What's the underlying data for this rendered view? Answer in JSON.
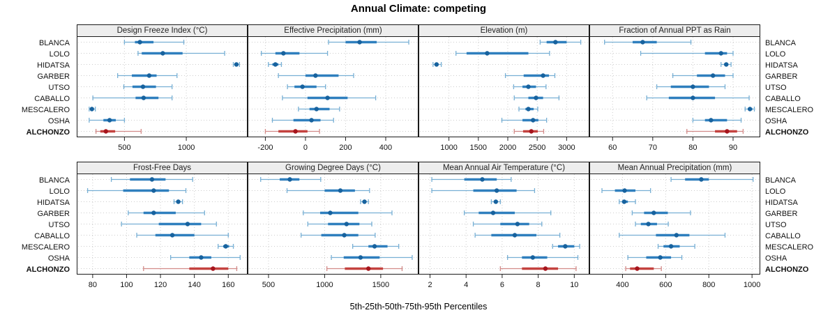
{
  "title": "Annual Climate: competing",
  "xlabel": "5th-25th-50th-75th-95th Percentiles",
  "sites": [
    "BLANCA",
    "LOLO",
    "HIDATSA",
    "GARBER",
    "UTSO",
    "CABALLO",
    "MESCALERO",
    "OSHA",
    "ALCHONZO"
  ],
  "highlight_site": "ALCHONZO",
  "colors": {
    "blue": {
      "median": "#17629e",
      "box": "#2f7fbe",
      "whisker": "#77afd4"
    },
    "red": {
      "median": "#a6151d",
      "box": "#c4423f",
      "whisker": "#d28a88"
    },
    "grid": "#cccccc",
    "border": "#1a1a1a",
    "header_bg": "#ededed",
    "text": "#111111"
  },
  "chart_data": {
    "type": "scatter",
    "variant": "dot-whisker percentile trellis (5th-25th-50th-75th-95th)",
    "layout": {
      "rows": 2,
      "cols": 4,
      "grid": "dotted",
      "labels_both_sides": true
    },
    "panels": [
      {
        "title": "Design Freeze Index (°C)",
        "ticks": [
          500,
          1000
        ],
        "xlim": [
          120,
          1490
        ],
        "values": {
          "BLANCA": [
            500,
            585,
            625,
            735,
            980
          ],
          "LOLO": [
            610,
            640,
            810,
            970,
            1310
          ],
          "HIDATSA": [
            1380,
            1395,
            1405,
            1415,
            1430
          ],
          "GARBER": [
            445,
            560,
            700,
            760,
            925
          ],
          "UTSO": [
            495,
            565,
            650,
            755,
            885
          ],
          "CABALLO": [
            245,
            590,
            655,
            775,
            885
          ],
          "MESCALERO": [
            215,
            228,
            237,
            248,
            265
          ],
          "OSHA": [
            215,
            330,
            380,
            430,
            500
          ],
          "ALCHONZO": [
            270,
            305,
            350,
            425,
            635
          ]
        }
      },
      {
        "title": "Effective Precipitation (mm)",
        "ticks": [
          -200,
          0,
          200,
          400
        ],
        "xlim": [
          -285,
          560
        ],
        "values": {
          "BLANCA": [
            115,
            200,
            270,
            355,
            515
          ],
          "LOLO": [
            -220,
            -150,
            -110,
            -30,
            110
          ],
          "HIDATSA": [
            -185,
            -165,
            -150,
            -135,
            -120
          ],
          "GARBER": [
            -135,
            0,
            50,
            165,
            240
          ],
          "UTSO": [
            -90,
            -55,
            -15,
            55,
            100
          ],
          "CABALLO": [
            -115,
            10,
            110,
            210,
            350
          ],
          "MESCALERO": [
            -35,
            20,
            55,
            120,
            170
          ],
          "OSHA": [
            -165,
            -60,
            30,
            75,
            140
          ],
          "ALCHONZO": [
            -200,
            -135,
            -50,
            10,
            70
          ]
        }
      },
      {
        "title": "Elevation (m)",
        "ticks": [
          1000,
          1500,
          2000,
          2500,
          3000
        ],
        "xlim": [
          495,
          3375
        ],
        "values": {
          "BLANCA": [
            2550,
            2660,
            2810,
            3000,
            3240
          ],
          "LOLO": [
            1120,
            1300,
            1650,
            2350,
            2710
          ],
          "HIDATSA": [
            730,
            770,
            790,
            815,
            870
          ],
          "GARBER": [
            1960,
            2270,
            2600,
            2700,
            2800
          ],
          "UTSO": [
            2100,
            2250,
            2350,
            2480,
            2650
          ],
          "CABALLO": [
            2110,
            2350,
            2480,
            2600,
            2870
          ],
          "MESCALERO": [
            2190,
            2300,
            2350,
            2440,
            2510
          ],
          "OSHA": [
            1900,
            2250,
            2430,
            2520,
            2660
          ],
          "ALCHONZO": [
            2110,
            2260,
            2400,
            2510,
            2610
          ]
        }
      },
      {
        "title": "Fraction of Annual PPT as Rain",
        "ticks": [
          60,
          70,
          80,
          90
        ],
        "xlim": [
          54.4,
          96.6
        ],
        "values": {
          "BLANCA": [
            58,
            65,
            67.5,
            71,
            79.5
          ],
          "LOLO": [
            67,
            83,
            87,
            88.5,
            90
          ],
          "HIDATSA": [
            87,
            87.8,
            88.3,
            88.8,
            89.5
          ],
          "GARBER": [
            75,
            81,
            85,
            88,
            90
          ],
          "UTSO": [
            71,
            74.5,
            80,
            84,
            88
          ],
          "CABALLO": [
            68.5,
            74,
            80,
            85.5,
            94
          ],
          "MESCALERO": [
            93,
            93.7,
            94.2,
            94.8,
            95.3
          ],
          "OSHA": [
            80,
            83,
            84.5,
            88.5,
            92
          ],
          "ALCHONZO": [
            78.5,
            85.5,
            88.5,
            91,
            92.5
          ]
        }
      },
      {
        "title": "Frost-Free Days",
        "ticks": [
          80,
          100,
          120,
          140,
          160
        ],
        "xlim": [
          71,
          171
        ],
        "values": {
          "BLANCA": [
            91,
            102,
            115,
            123,
            139
          ],
          "LOLO": [
            77,
            98,
            116,
            125,
            135
          ],
          "HIDATSA": [
            128,
            129.5,
            130.5,
            131.5,
            133
          ],
          "GARBER": [
            101,
            110,
            116,
            129,
            146
          ],
          "UTSO": [
            97,
            119,
            136,
            144,
            153
          ],
          "CABALLO": [
            106,
            117,
            127,
            140,
            160
          ],
          "MESCALERO": [
            154,
            157,
            158.5,
            160.5,
            163
          ],
          "OSHA": [
            126,
            137,
            144,
            150,
            167
          ],
          "ALCHONZO": [
            110,
            137,
            151,
            160,
            165
          ]
        }
      },
      {
        "title": "Growing Degree Days (°C)",
        "ticks": [
          500,
          1000,
          1500
        ],
        "xlim": [
          320,
          1830
        ],
        "values": {
          "BLANCA": [
            430,
            600,
            690,
            775,
            965
          ],
          "LOLO": [
            665,
            1000,
            1140,
            1270,
            1400
          ],
          "HIDATSA": [
            1320,
            1340,
            1355,
            1370,
            1390
          ],
          "GARBER": [
            810,
            960,
            1050,
            1300,
            1600
          ],
          "UTSO": [
            850,
            1030,
            1195,
            1310,
            1420
          ],
          "CABALLO": [
            790,
            970,
            1175,
            1300,
            1450
          ],
          "MESCALERO": [
            1250,
            1390,
            1445,
            1560,
            1660
          ],
          "OSHA": [
            1060,
            1170,
            1320,
            1490,
            1780
          ],
          "ALCHONZO": [
            1020,
            1180,
            1390,
            1520,
            1690
          ]
        }
      },
      {
        "title": "Mean Annual Air Temperature (°C)",
        "ticks": [
          2,
          4,
          6,
          8,
          10
        ],
        "xlim": [
          1.4,
          10.8
        ],
        "values": {
          "BLANCA": [
            2.1,
            3.9,
            4.9,
            5.7,
            6.5
          ],
          "LOLO": [
            2.1,
            4.4,
            5.7,
            6.8,
            7.8
          ],
          "HIDATSA": [
            5.4,
            5.55,
            5.65,
            5.75,
            5.9
          ],
          "GARBER": [
            3.9,
            4.7,
            5.5,
            6.7,
            8.7
          ],
          "UTSO": [
            4.4,
            5.9,
            6.85,
            7.5,
            8.2
          ],
          "CABALLO": [
            4.5,
            5.4,
            6.7,
            7.9,
            9.2
          ],
          "MESCALERO": [
            8.8,
            9.1,
            9.5,
            10.0,
            10.3
          ],
          "OSHA": [
            6.3,
            7.1,
            7.7,
            8.5,
            10.2
          ],
          "ALCHONZO": [
            5.9,
            7.1,
            8.4,
            9.1,
            10.1
          ]
        }
      },
      {
        "title": "Mean Annual Precipitation (mm)",
        "ticks": [
          400,
          600,
          800,
          1000
        ],
        "xlim": [
          250,
          1035
        ],
        "values": {
          "BLANCA": [
            625,
            690,
            765,
            800,
            1005
          ],
          "LOLO": [
            305,
            365,
            410,
            460,
            530
          ],
          "HIDATSA": [
            385,
            398,
            408,
            425,
            460
          ],
          "GARBER": [
            445,
            500,
            545,
            610,
            715
          ],
          "UTSO": [
            460,
            485,
            520,
            560,
            612
          ],
          "CABALLO": [
            385,
            555,
            650,
            710,
            875
          ],
          "MESCALERO": [
            565,
            590,
            625,
            665,
            735
          ],
          "OSHA": [
            425,
            510,
            575,
            625,
            675
          ],
          "ALCHONZO": [
            415,
            435,
            468,
            545,
            580
          ]
        }
      }
    ]
  }
}
